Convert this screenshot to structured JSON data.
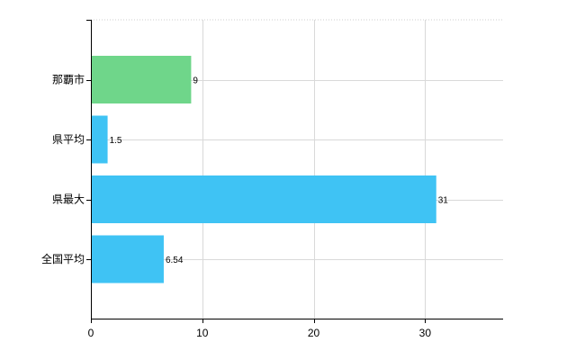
{
  "chart_data": {
    "type": "bar",
    "orientation": "horizontal",
    "categories": [
      "那覇市",
      "県平均",
      "県最大",
      "全国平均"
    ],
    "values": [
      9,
      1.5,
      31,
      6.54
    ],
    "value_labels": [
      "9",
      "1.5",
      "31",
      "6.54"
    ],
    "bar_colors": [
      "#6fd68a",
      "#3fc3f4",
      "#3fc3f4",
      "#3fc3f4"
    ],
    "xlim": [
      0,
      37
    ],
    "x_ticks": [
      0,
      10,
      20,
      30
    ],
    "x_tick_labels": [
      "0",
      "10",
      "20",
      "30"
    ],
    "grid": true,
    "title": "",
    "xlabel": "",
    "ylabel": ""
  }
}
